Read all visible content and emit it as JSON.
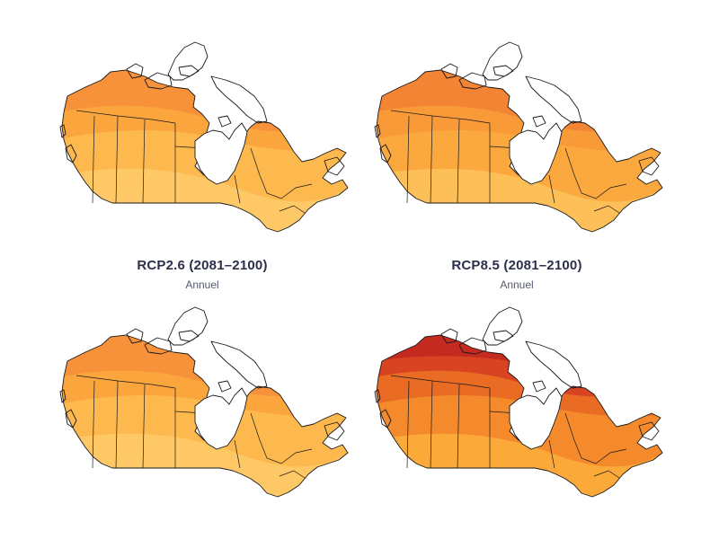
{
  "captions": {
    "left": {
      "title": "RCP2.6 (2081–2100)",
      "subtitle": "Annuel"
    },
    "right": {
      "title": "RCP8.5 (2081–2100)",
      "subtitle": "Annuel"
    }
  },
  "maps": [
    {
      "id": "top-left",
      "icon": "canada-map",
      "colors": {
        "base": "#ffc866",
        "mid": "#fdb94e",
        "north": "#fba63d",
        "arctic": "#f7923a",
        "high": "#f7923a",
        "extreme": "#f7923a"
      }
    },
    {
      "id": "top-right",
      "icon": "canada-map",
      "colors": {
        "base": "#fdbf58",
        "mid": "#fba83e",
        "north": "#f89a38",
        "arctic": "#f28434",
        "high": "#f28434",
        "extreme": "#f28434"
      }
    },
    {
      "id": "bottom-left",
      "icon": "canada-map",
      "colors": {
        "base": "#ffc866",
        "mid": "#fdb94e",
        "north": "#fba63d",
        "arctic": "#f7923a",
        "high": "#f7923a",
        "extreme": "#f7923a"
      }
    },
    {
      "id": "bottom-right",
      "icon": "canada-map",
      "colors": {
        "base": "#fbaa3a",
        "mid": "#f48a2c",
        "north": "#e96b24",
        "arctic": "#d84322",
        "high": "#c52a20",
        "extreme": "#a3121a"
      }
    }
  ]
}
